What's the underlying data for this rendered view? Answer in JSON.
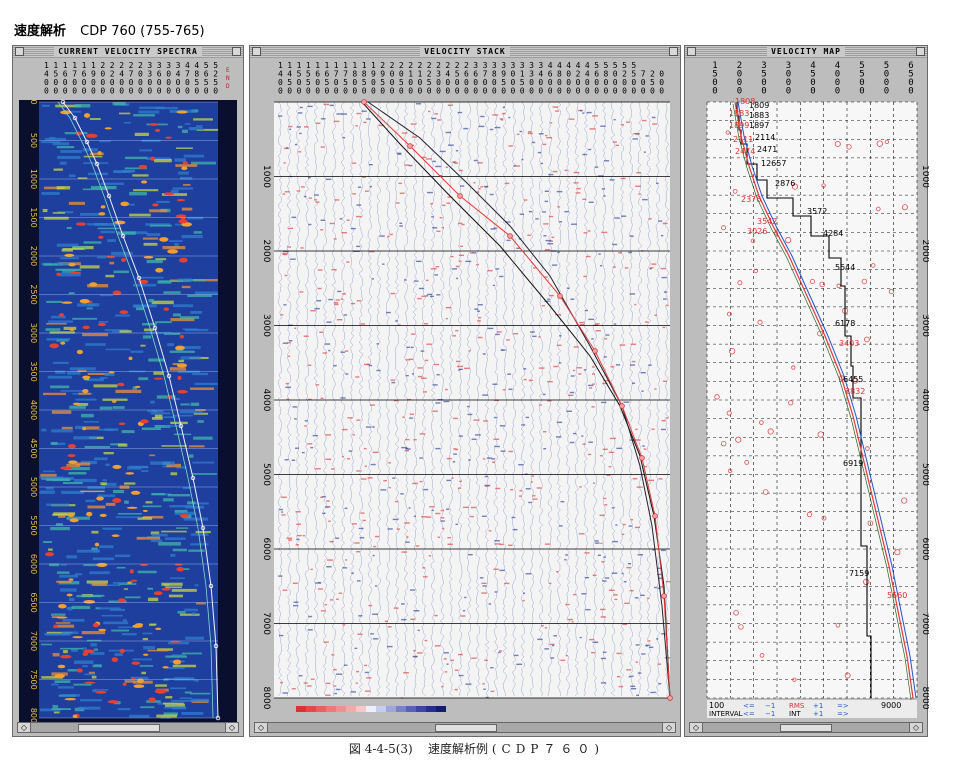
{
  "header": {
    "title_jp": "速度解析",
    "title_cdp": "CDP 760 (755-765)"
  },
  "caption": {
    "figure_no": "図 4-4-5(3)",
    "text": "速度解析例",
    "paren": "(CDP７６０)"
  },
  "panels": {
    "spectra": {
      "title": "CURRENT VELOCITY SPECTRA"
    },
    "stack": {
      "title": "VELOCITY STACK"
    },
    "map": {
      "title": "VELOCITY MAP"
    }
  },
  "axes": {
    "time_ticks": [
      "0",
      "500",
      "1000",
      "1500",
      "2000",
      "2500",
      "3000",
      "3500",
      "4000",
      "4500",
      "5000",
      "5500",
      "6000",
      "6500",
      "7000",
      "7500",
      "8000"
    ],
    "stack_time_ticks": [
      "0",
      "1000",
      "2000",
      "3000",
      "4000",
      "5000",
      "6000",
      "7000",
      "8000"
    ],
    "spectra_header_rows": [
      "1111112222233334455",
      "4567690247036047862",
      "0000000000000000555",
      "0000000000000000000"
    ],
    "spectra_side_labels": [
      "E",
      "N",
      "D"
    ],
    "stack_header_rows": [
      "111111111112222222222333333334444455555",
      "445566778899001123456678901346802468025720",
      "050505050505050050000000505000000000000050",
      "000000000000000000000000000000000000000000"
    ],
    "map_x_ticks": [
      "1",
      "2",
      "3",
      "3",
      "4",
      "4",
      "5",
      "5",
      "6"
    ],
    "map_x_rows": [
      [
        "1",
        "2",
        "3",
        "3",
        "4",
        "4",
        "5",
        "5",
        "6"
      ],
      [
        "5",
        "0",
        "5",
        "0",
        "5",
        "0",
        "5",
        "0",
        "5"
      ],
      [
        "0",
        "0",
        "0",
        "0",
        "0",
        "0",
        "0",
        "0",
        "0"
      ],
      [
        "0",
        "0",
        "0",
        "0",
        "0",
        "0",
        "0",
        "0",
        "0"
      ]
    ]
  },
  "map_values": {
    "black": [
      "1809",
      "1883",
      "1897",
      "2114",
      "2471",
      "12657",
      "2876",
      "3572",
      "4284",
      "5544",
      "6178",
      "6455",
      "6919",
      "7159"
    ],
    "red": [
      "1808",
      "1883",
      "1899",
      "2111",
      "2474",
      "2376",
      "3026",
      "3542",
      "3403",
      "3832",
      "5560"
    ]
  },
  "legend": {
    "row1": {
      "left": "100",
      "a": "<=",
      "b": "−1",
      "rms": "RMS",
      "c": "+1",
      "d": "=>",
      "right": "9000"
    },
    "row2": {
      "label": "INTERVAL",
      "a": "<=",
      "b": "−1",
      "int": "INT",
      "c": "+1",
      "d": "=>"
    }
  },
  "colors": {
    "panel_bg": "#bdbdbd",
    "spectra_bg": "#1f3f9e",
    "red_line": "#e23a3a",
    "blue_line": "#2255cc",
    "black_line": "#000000",
    "dashed_grid": "#111111"
  },
  "scrollbar": {
    "left_arrow": "◇",
    "right_arrow": "◇"
  }
}
